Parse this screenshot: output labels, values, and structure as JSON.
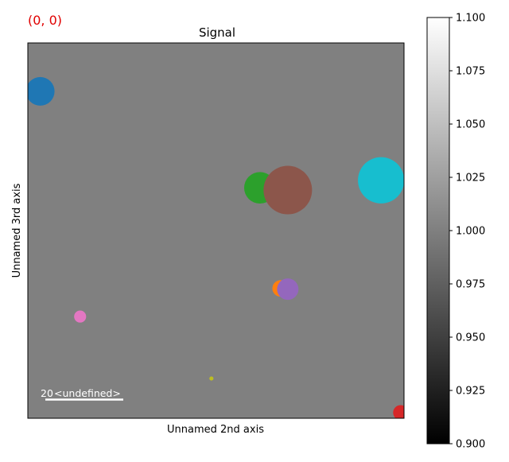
{
  "coord_readout": "(0, 0)",
  "colors": {
    "readout": "#e00000",
    "background": "#808080",
    "scalebar": "#ffffff"
  },
  "chart_data": {
    "type": "scatter",
    "title": "Signal",
    "xlabel": "Unnamed 2nd axis",
    "ylabel": "Unnamed 3rd axis",
    "xlim": [
      0,
      100
    ],
    "ylim": [
      0,
      100
    ],
    "axes_ticks": "off",
    "background_value": 1.0,
    "scalebar": {
      "value": "20",
      "units": "<undefined>",
      "length_data_units": 20
    },
    "markers": [
      {
        "name": "blue",
        "x": 3.3,
        "y": 87.1,
        "size": 7.6,
        "color": "#1f77b4"
      },
      {
        "name": "orange",
        "x": 67.2,
        "y": 34.6,
        "size": 4.4,
        "color": "#ff7f0e"
      },
      {
        "name": "green",
        "x": 61.7,
        "y": 61.4,
        "size": 8.4,
        "color": "#2ca02c"
      },
      {
        "name": "red",
        "x": 99.1,
        "y": 1.5,
        "size": 4.0,
        "color": "#d62728"
      },
      {
        "name": "purple",
        "x": 69.1,
        "y": 34.4,
        "size": 5.7,
        "color": "#9467bd"
      },
      {
        "name": "brown",
        "x": 69.1,
        "y": 60.8,
        "size": 12.9,
        "color": "#8c564b"
      },
      {
        "name": "pink",
        "x": 13.9,
        "y": 27.1,
        "size": 3.2,
        "color": "#e377c2"
      },
      {
        "name": "olive",
        "x": 48.8,
        "y": 10.6,
        "size": 1.1,
        "color": "#bcbd22"
      },
      {
        "name": "cyan",
        "x": 93.9,
        "y": 63.4,
        "size": 12.3,
        "color": "#17becf"
      }
    ],
    "colorbar": {
      "cmap": "gray",
      "range": [
        0.9,
        1.1
      ],
      "ticks": [
        "0.900",
        "0.925",
        "0.950",
        "0.975",
        "1.000",
        "1.025",
        "1.050",
        "1.075",
        "1.100"
      ]
    }
  }
}
